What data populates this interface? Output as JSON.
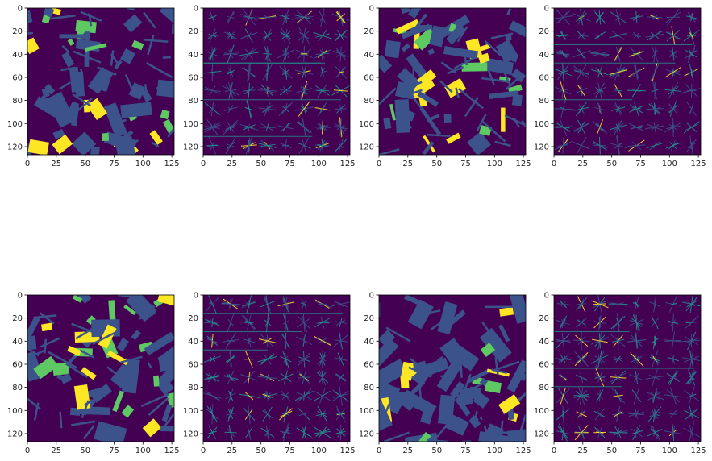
{
  "colors": {
    "bg": "#440154",
    "c1": "#3b528b",
    "c2": "#5ec962",
    "c3": "#fde725",
    "mid": "#21918c"
  },
  "chart_data": [
    {
      "type": "heatmap",
      "kind": "segmentation",
      "seed": 11,
      "xticks": [
        "0",
        "25",
        "50",
        "75",
        "100",
        "125"
      ],
      "yticks": [
        "0",
        "20",
        "40",
        "60",
        "80",
        "100",
        "120"
      ],
      "xlim": [
        0,
        127
      ],
      "ylim": [
        127,
        0
      ]
    },
    {
      "type": "heatmap",
      "kind": "hog",
      "seed": 21,
      "xticks": [
        "0",
        "25",
        "50",
        "75",
        "100",
        "125"
      ],
      "yticks": [
        "0",
        "20",
        "40",
        "60",
        "80",
        "100",
        "120"
      ],
      "xlim": [
        0,
        127
      ],
      "ylim": [
        127,
        0
      ]
    },
    {
      "type": "heatmap",
      "kind": "segmentation",
      "seed": 33,
      "xticks": [
        "0",
        "25",
        "50",
        "75",
        "100",
        "125"
      ],
      "yticks": [
        "0",
        "20",
        "40",
        "60",
        "80",
        "100",
        "120"
      ],
      "xlim": [
        0,
        127
      ],
      "ylim": [
        127,
        0
      ]
    },
    {
      "type": "heatmap",
      "kind": "hog",
      "seed": 44,
      "xticks": [
        "0",
        "25",
        "50",
        "75",
        "100",
        "125"
      ],
      "yticks": [
        "0",
        "20",
        "40",
        "60",
        "80",
        "100",
        "120"
      ],
      "xlim": [
        0,
        127
      ],
      "ylim": [
        127,
        0
      ]
    },
    {
      "type": "heatmap",
      "kind": "segmentation",
      "seed": 55,
      "xticks": [
        "0",
        "25",
        "50",
        "75",
        "100",
        "125"
      ],
      "yticks": [
        "0",
        "20",
        "40",
        "60",
        "80",
        "100",
        "120"
      ],
      "xlim": [
        0,
        127
      ],
      "ylim": [
        127,
        0
      ]
    },
    {
      "type": "heatmap",
      "kind": "hog",
      "seed": 66,
      "xticks": [
        "0",
        "25",
        "50",
        "75",
        "100",
        "125"
      ],
      "yticks": [
        "0",
        "20",
        "40",
        "60",
        "80",
        "100",
        "120"
      ],
      "xlim": [
        0,
        127
      ],
      "ylim": [
        127,
        0
      ]
    },
    {
      "type": "heatmap",
      "kind": "segmentation",
      "seed": 77,
      "xticks": [
        "0",
        "25",
        "50",
        "75",
        "100",
        "125"
      ],
      "yticks": [
        "0",
        "20",
        "40",
        "60",
        "80",
        "100",
        "120"
      ],
      "xlim": [
        0,
        127
      ],
      "ylim": [
        127,
        0
      ]
    },
    {
      "type": "heatmap",
      "kind": "hog",
      "seed": 88,
      "xticks": [
        "0",
        "25",
        "50",
        "75",
        "100",
        "125"
      ],
      "yticks": [
        "0",
        "20",
        "40",
        "60",
        "80",
        "100",
        "120"
      ],
      "xlim": [
        0,
        127
      ],
      "ylim": [
        127,
        0
      ]
    }
  ]
}
